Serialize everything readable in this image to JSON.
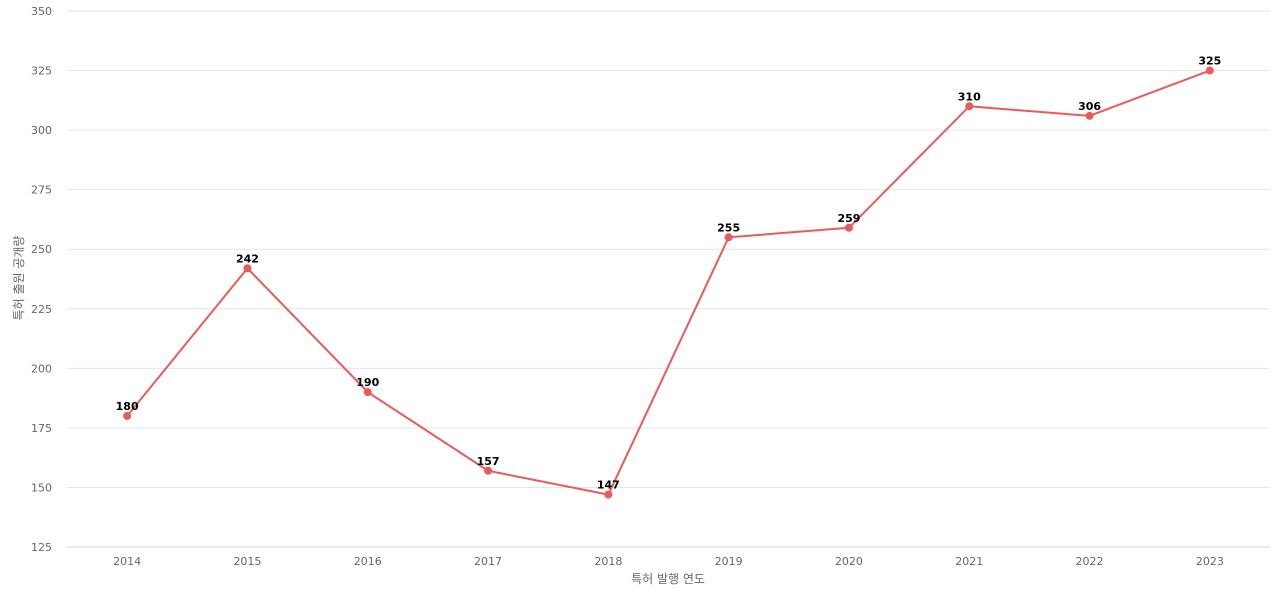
{
  "chart_data": {
    "type": "line",
    "title": "",
    "xlabel": "특허 발행 연도",
    "ylabel": "특허 출원 공개량",
    "categories": [
      "2014",
      "2015",
      "2016",
      "2017",
      "2018",
      "2019",
      "2020",
      "2021",
      "2022",
      "2023"
    ],
    "series": [
      {
        "values": [
          180,
          242,
          190,
          157,
          147,
          255,
          259,
          310,
          306,
          325
        ],
        "color": "#eb5a5a"
      }
    ],
    "ylim": [
      125,
      350
    ],
    "yticks": [
      125,
      150,
      175,
      200,
      225,
      250,
      275,
      300,
      325,
      350
    ],
    "grid": true,
    "legend": "none",
    "data_labels": true
  }
}
